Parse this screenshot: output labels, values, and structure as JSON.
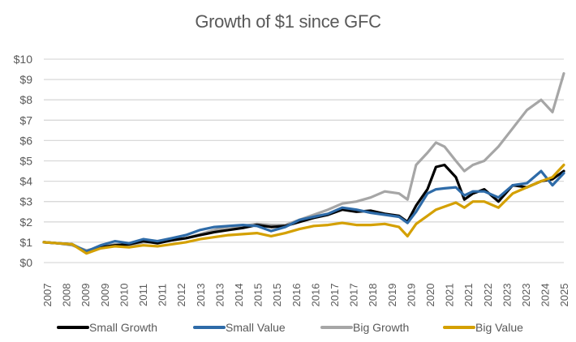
{
  "chart_data": {
    "type": "line",
    "title": "Growth of $1 since GFC",
    "xlabel": "",
    "ylabel": "",
    "ylim": [
      0,
      10
    ],
    "y_ticks": [
      "$0",
      "$1",
      "$2",
      "$3",
      "$4",
      "$5",
      "$6",
      "$7",
      "$8",
      "$9",
      "$10"
    ],
    "x_tick_labels": [
      "2007",
      "2008",
      "2009",
      "2009",
      "2010",
      "2011",
      "2011",
      "2012",
      "2013",
      "2013",
      "2014",
      "2015",
      "2015",
      "2016",
      "2016",
      "2017",
      "2017",
      "2018",
      "2019",
      "2019",
      "2020",
      "2021",
      "2021",
      "2022",
      "2023",
      "2023",
      "2024",
      "2025"
    ],
    "x_range": [
      2007.5,
      2025.8
    ],
    "grid": true,
    "legend_position": "bottom",
    "x": [
      2007.5,
      2008.0,
      2008.5,
      2009.0,
      2009.5,
      2010.0,
      2010.5,
      2011.0,
      2011.5,
      2012.0,
      2012.5,
      2013.0,
      2013.5,
      2014.0,
      2014.5,
      2015.0,
      2015.5,
      2016.0,
      2016.5,
      2017.0,
      2017.5,
      2018.0,
      2018.5,
      2019.0,
      2019.5,
      2020.0,
      2020.3,
      2020.6,
      2021.0,
      2021.3,
      2021.6,
      2022.0,
      2022.3,
      2022.6,
      2023.0,
      2023.5,
      2024.0,
      2024.5,
      2025.0,
      2025.4,
      2025.8
    ],
    "series": [
      {
        "name": "Small Growth",
        "color": "#000000",
        "values": [
          1.0,
          0.95,
          0.9,
          0.5,
          0.75,
          0.85,
          0.9,
          1.05,
          0.95,
          1.1,
          1.2,
          1.35,
          1.5,
          1.6,
          1.7,
          1.85,
          1.75,
          1.8,
          2.0,
          2.2,
          2.35,
          2.6,
          2.5,
          2.55,
          2.4,
          2.3,
          2.0,
          2.8,
          3.6,
          4.7,
          4.8,
          4.2,
          3.1,
          3.4,
          3.6,
          3.0,
          3.8,
          3.7,
          4.0,
          4.1,
          4.5
        ]
      },
      {
        "name": "Small Value",
        "color": "#2E6BA8",
        "values": [
          1.0,
          0.95,
          0.9,
          0.55,
          0.85,
          1.05,
          0.95,
          1.15,
          1.05,
          1.2,
          1.35,
          1.6,
          1.75,
          1.8,
          1.85,
          1.8,
          1.55,
          1.75,
          2.1,
          2.25,
          2.4,
          2.7,
          2.6,
          2.45,
          2.35,
          2.25,
          1.95,
          2.5,
          3.4,
          3.6,
          3.65,
          3.7,
          3.3,
          3.5,
          3.5,
          3.2,
          3.8,
          3.9,
          4.5,
          3.8,
          4.4
        ]
      },
      {
        "name": "Big Growth",
        "color": "#A6A6A6",
        "values": [
          1.0,
          0.95,
          0.85,
          0.6,
          0.75,
          0.9,
          0.85,
          1.0,
          1.0,
          1.1,
          1.2,
          1.4,
          1.6,
          1.75,
          1.8,
          1.9,
          1.85,
          1.85,
          2.1,
          2.35,
          2.6,
          2.9,
          3.0,
          3.2,
          3.5,
          3.4,
          3.1,
          4.8,
          5.4,
          5.9,
          5.7,
          5.0,
          4.5,
          4.8,
          5.0,
          5.7,
          6.6,
          7.5,
          8.0,
          7.4,
          9.3
        ]
      },
      {
        "name": "Big Value",
        "color": "#D4A000",
        "values": [
          1.0,
          0.95,
          0.9,
          0.45,
          0.7,
          0.8,
          0.75,
          0.85,
          0.8,
          0.9,
          1.0,
          1.15,
          1.25,
          1.35,
          1.4,
          1.45,
          1.3,
          1.45,
          1.65,
          1.8,
          1.85,
          1.95,
          1.85,
          1.85,
          1.9,
          1.75,
          1.3,
          1.9,
          2.3,
          2.6,
          2.75,
          2.95,
          2.7,
          3.0,
          3.0,
          2.7,
          3.4,
          3.7,
          4.0,
          4.2,
          4.8
        ]
      }
    ]
  }
}
